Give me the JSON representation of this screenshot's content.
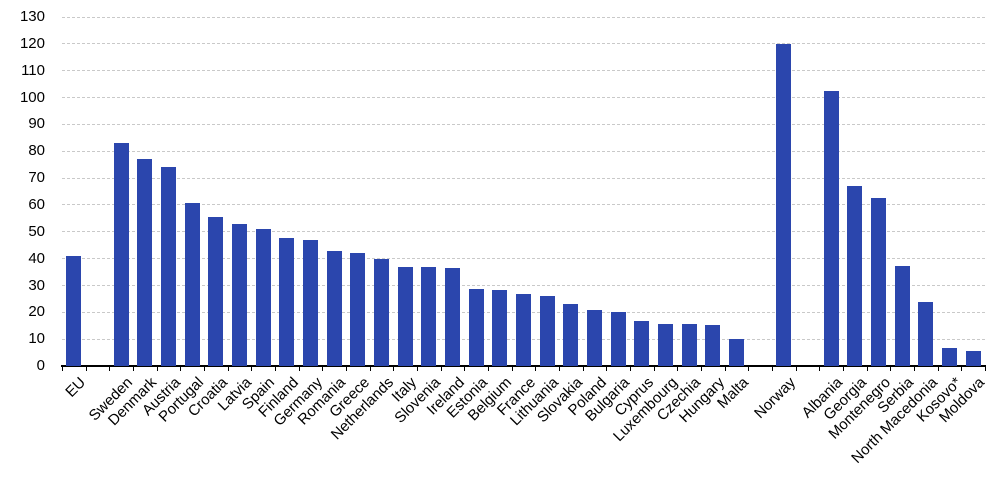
{
  "chart_data": {
    "type": "bar",
    "title": "",
    "xlabel": "",
    "ylabel": "",
    "ylim": [
      0,
      130
    ],
    "ytick_step": 10,
    "yticks": [
      0,
      10,
      20,
      30,
      40,
      50,
      60,
      70,
      80,
      90,
      100,
      110,
      120,
      130
    ],
    "grid": "horizontal-dashed",
    "legend": null,
    "bar_color": "#2b46ad",
    "axis_color": "#000000",
    "gridline_color": "#c9c9c9",
    "gap_slots_between_groups": 1,
    "groups": [
      {
        "name": "eu-aggregate",
        "categories": [
          "EU"
        ],
        "values": [
          41.0
        ]
      },
      {
        "name": "eu-member-states",
        "categories": [
          "Sweden",
          "Denmark",
          "Austria",
          "Portugal",
          "Croatia",
          "Latvia",
          "Spain",
          "Finland",
          "Germany",
          "Romania",
          "Greece",
          "Netherlands",
          "Italy",
          "Slovenia",
          "Ireland",
          "Estonia",
          "Belgium",
          "France",
          "Lithuania",
          "Slovakia",
          "Poland",
          "Bulgaria",
          "Cyprus",
          "Luxembourg",
          "Czechia",
          "Hungary",
          "Malta"
        ],
        "values": [
          83.1,
          77.0,
          74.2,
          60.7,
          55.6,
          53.0,
          51.0,
          47.7,
          46.9,
          43.0,
          42.0,
          39.7,
          37.0,
          36.9,
          36.6,
          28.7,
          28.5,
          27.0,
          26.0,
          23.0,
          21.0,
          20.0,
          16.8,
          15.8,
          15.5,
          15.4,
          10.0
        ]
      },
      {
        "name": "norway",
        "categories": [
          "Norway"
        ],
        "values": [
          119.8
        ]
      },
      {
        "name": "candidates-and-others",
        "categories": [
          "Albania",
          "Georgia",
          "Montenegro",
          "Serbia",
          "North Macedonia",
          "Kosovo*",
          "Moldova"
        ],
        "values": [
          102.4,
          67.0,
          62.5,
          37.4,
          24.0,
          6.8,
          5.7
        ]
      }
    ]
  }
}
